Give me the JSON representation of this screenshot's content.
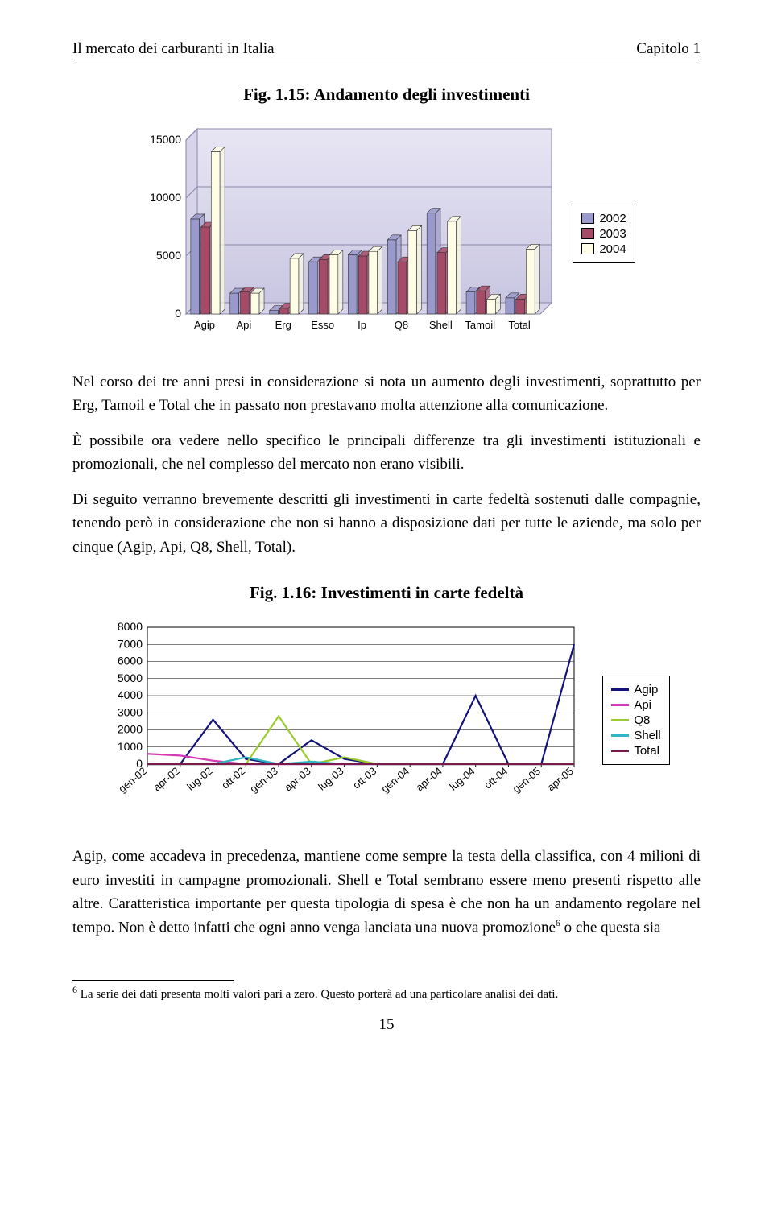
{
  "header": {
    "left": "Il mercato dei carburanti in Italia",
    "right": "Capitolo 1"
  },
  "fig1": {
    "title": "Fig. 1.15: Andamento degli investimenti",
    "type": "bar",
    "categories": [
      "Agip",
      "Api",
      "Erg",
      "Esso",
      "Ip",
      "Q8",
      "Shell",
      "Tamoil",
      "Total"
    ],
    "series": [
      {
        "name": "2002",
        "color": "#9a99cc",
        "values": [
          8200,
          1800,
          300,
          4500,
          5100,
          6400,
          8700,
          1900,
          1400
        ]
      },
      {
        "name": "2003",
        "color": "#a54b67",
        "values": [
          7500,
          1900,
          500,
          4700,
          5000,
          4500,
          5300,
          2000,
          1300
        ]
      },
      {
        "name": "2004",
        "color": "#fffde6",
        "values": [
          14000,
          1800,
          4800,
          5100,
          5400,
          7200,
          8000,
          1300,
          5600
        ]
      }
    ],
    "ylim": [
      0,
      15000
    ],
    "ytick_step": 5000,
    "plot_bg_top": "#e8e6f4",
    "plot_bg_bottom": "#c9c6e2",
    "grid_color": "#8886a8",
    "label_fontsize": 14,
    "font": "Arial"
  },
  "para1": "Nel corso dei tre anni presi in considerazione si nota un aumento degli investimenti, soprattutto per Erg, Tamoil e Total che in passato non prestavano molta attenzione alla comunicazione.",
  "para2": "È possibile ora vedere nello specifico le principali differenze tra gli investimenti istituzionali e promozionali, che nel complesso del mercato non erano visibili.",
  "para3": "Di seguito verranno brevemente descritti gli investimenti in carte fedeltà sostenuti dalle compagnie, tenendo però in considerazione che non si hanno a disposizione dati per tutte le aziende, ma solo per cinque (Agip, Api, Q8, Shell, Total).",
  "fig2": {
    "title": "Fig. 1.16: Investimenti in carte fedeltà",
    "type": "line",
    "x_labels": [
      "gen-02",
      "apr-02",
      "lug-02",
      "ott-02",
      "gen-03",
      "apr-03",
      "lug-03",
      "ott-03",
      "gen-04",
      "apr-04",
      "lug-04",
      "ott-04",
      "gen-05",
      "apr-05"
    ],
    "series": [
      {
        "name": "Agip",
        "color": "#13137a",
        "values": [
          0,
          0,
          2600,
          300,
          0,
          1400,
          300,
          0,
          0,
          0,
          4000,
          0,
          0,
          7000
        ]
      },
      {
        "name": "Api",
        "color": "#d63ab7",
        "values": [
          600,
          500,
          200,
          0,
          0,
          0,
          0,
          0,
          0,
          0,
          0,
          0,
          0,
          0
        ]
      },
      {
        "name": "Q8",
        "color": "#9bcc2e",
        "values": [
          0,
          0,
          0,
          0,
          2800,
          0,
          400,
          0,
          0,
          0,
          0,
          0,
          0,
          0
        ]
      },
      {
        "name": "Shell",
        "color": "#2fb6c0",
        "values": [
          0,
          0,
          0,
          400,
          0,
          150,
          0,
          0,
          0,
          0,
          0,
          0,
          0,
          0
        ]
      },
      {
        "name": "Total",
        "color": "#7a1a4a",
        "values": [
          0,
          0,
          0,
          0,
          0,
          0,
          0,
          0,
          0,
          0,
          0,
          0,
          0,
          0
        ]
      }
    ],
    "ylim": [
      0,
      8000
    ],
    "ytick_step": 1000,
    "grid_color": "#000000",
    "label_fontsize": 14,
    "font": "Arial"
  },
  "para4_part1": "Agip, come accadeva in precedenza, mantiene come sempre la testa della classifica, con 4 milioni di euro investiti in campagne promozionali. Shell e Total sembrano essere meno presenti rispetto alle altre. Caratteristica importante per questa tipologia di spesa è che non ha un andamento regolare nel tempo. Non è detto infatti che ogni anno venga lanciata una nuova promozione",
  "para4_sup": "6",
  "para4_part2": " o che questa sia",
  "footnote_sup": "6",
  "footnote_text": " La serie dei dati presenta molti valori pari a zero. Questo porterà ad una particolare analisi dei dati.",
  "page_number": "15"
}
